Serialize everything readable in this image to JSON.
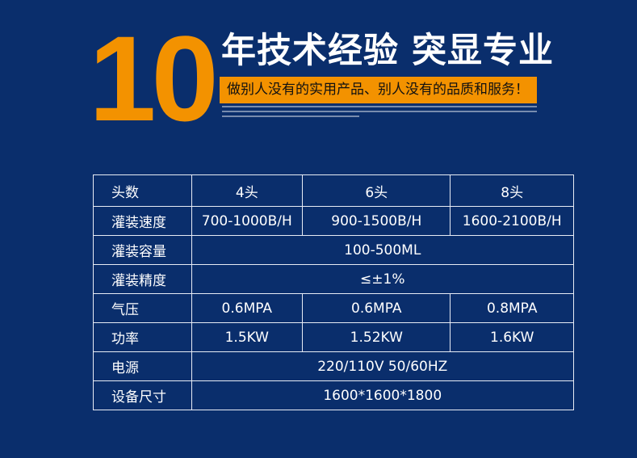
{
  "header": {
    "number": "10",
    "title": "年技术经验 突显专业",
    "slogan": "做别人没有的实用产品、别人没有的品质和服务！",
    "accent_color": "#f39200",
    "background_color": "#0a2e6c"
  },
  "table": {
    "rows": [
      {
        "label": "头数",
        "cells": [
          "4头",
          "6头",
          "8头"
        ]
      },
      {
        "label": "灌装速度",
        "cells": [
          "700-1000B/H",
          "900-1500B/H",
          "1600-2100B/H"
        ]
      },
      {
        "label": "灌装容量",
        "merged": "100-500ML"
      },
      {
        "label": "灌装精度",
        "merged": "≤±1%"
      },
      {
        "label": "气压",
        "cells": [
          "0.6MPA",
          "0.6MPA",
          "0.8MPA"
        ]
      },
      {
        "label": "功率",
        "cells": [
          "1.5KW",
          "1.52KW",
          "1.6KW"
        ]
      },
      {
        "label": "电源",
        "merged": "220/110V 50/60HZ"
      },
      {
        "label": "设备尺寸",
        "merged": "1600*1600*1800"
      }
    ]
  }
}
